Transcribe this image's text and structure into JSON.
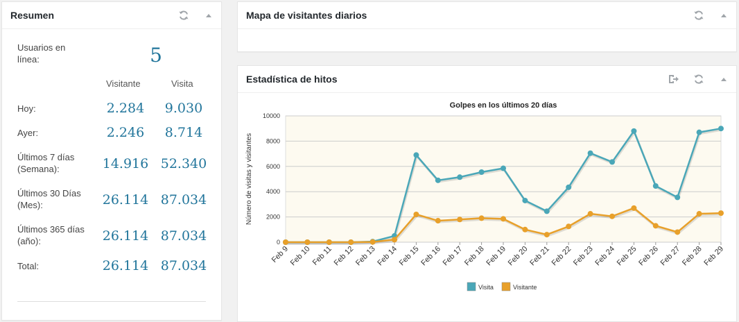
{
  "resumen": {
    "title": "Resumen",
    "online_label": "Usuarios en línea:",
    "online_count": "5",
    "col_visitor": "Visitante",
    "col_visit": "Visita",
    "rows": [
      {
        "label": "Hoy:",
        "visitor": "2.284",
        "visit": "9.030"
      },
      {
        "label": "Ayer:",
        "visitor": "2.246",
        "visit": "8.714"
      },
      {
        "label": "Últimos 7 días (Semana):",
        "visitor": "14.916",
        "visit": "52.340"
      },
      {
        "label": "Últimos 30 Días (Mes):",
        "visitor": "26.114",
        "visit": "87.034"
      },
      {
        "label": "Últimos 365 días (año):",
        "visitor": "26.114",
        "visit": "87.034"
      },
      {
        "label": "Total:",
        "visitor": "26.114",
        "visit": "87.034"
      }
    ]
  },
  "mapa": {
    "title": "Mapa de visitantes diarios"
  },
  "hitos": {
    "title": "Estadística de hitos"
  },
  "colors": {
    "visita": "#4aa7b8",
    "visitante": "#e8a02a",
    "accent": "#21759b"
  },
  "chart_data": {
    "type": "line",
    "title": "Golpes en los últimos 20 días",
    "ylabel": "Número de visitas y visitantes",
    "xlabel": "",
    "ylim": [
      0,
      10000
    ],
    "yticks": [
      "0",
      "2000",
      "4000",
      "6000",
      "8000",
      "10000"
    ],
    "categories": [
      "Feb 9",
      "Feb 10",
      "Feb 11",
      "Feb 12",
      "Feb 13",
      "Feb 14",
      "Feb 15",
      "Feb 16",
      "Feb 17",
      "Feb 18",
      "Feb 19",
      "Feb 20",
      "Feb 21",
      "Feb 22",
      "Feb 23",
      "Feb 24",
      "Feb 25",
      "Feb 26",
      "Feb 27",
      "Feb 28",
      "Feb 29"
    ],
    "series": [
      {
        "name": "Visita",
        "values": [
          0,
          0,
          0,
          0,
          50,
          500,
          6900,
          4900,
          5150,
          5550,
          5850,
          3300,
          2450,
          4350,
          7050,
          6350,
          8800,
          4450,
          3550,
          8700,
          9000
        ]
      },
      {
        "name": "Visitante",
        "values": [
          0,
          0,
          0,
          0,
          20,
          200,
          2200,
          1700,
          1800,
          1900,
          1850,
          1000,
          600,
          1250,
          2250,
          2050,
          2700,
          1300,
          800,
          2250,
          2300
        ]
      }
    ],
    "legend": "bottom",
    "grid": true
  }
}
